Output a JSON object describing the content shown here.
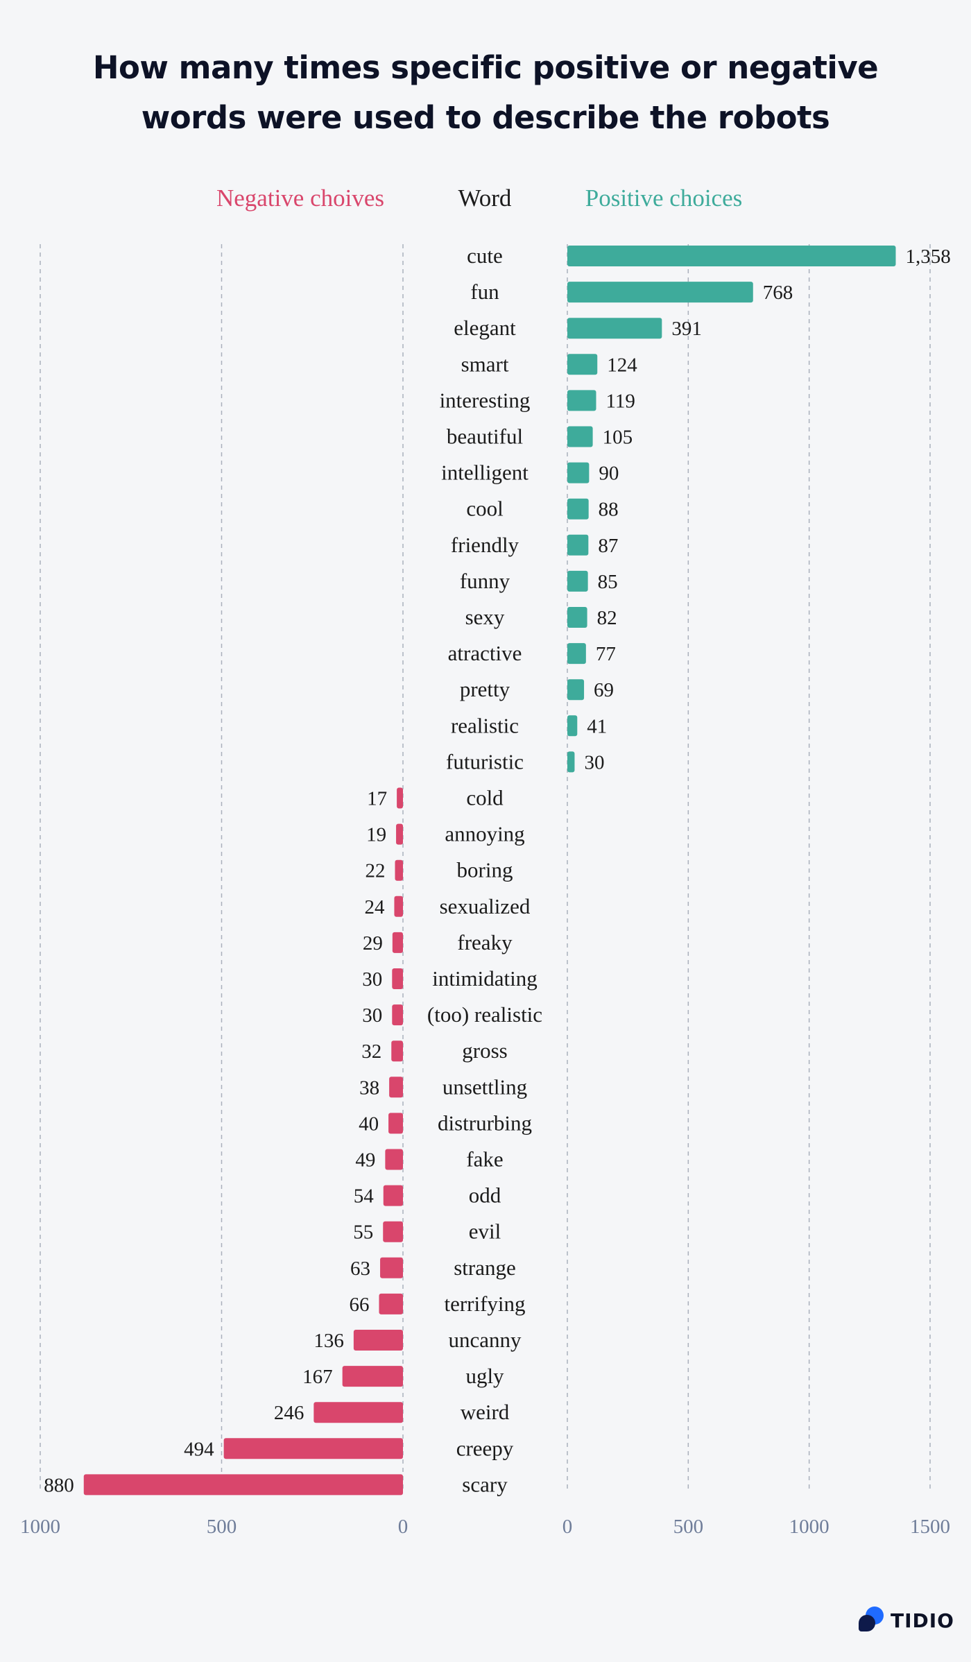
{
  "title_lines": [
    "How many times specific positive or negative",
    "words were used to describe the robots"
  ],
  "headers": {
    "negative": "Negative choives",
    "word": "Word",
    "positive": "Positive choices"
  },
  "colors": {
    "negative": "#d9466c",
    "positive": "#3eab9b",
    "text": "#1b1b1b",
    "axis_tick": "#6f7d99",
    "grid": "#aab0bc",
    "background": "#f5f6f8"
  },
  "logo_text": "TIDIO",
  "chart_data": {
    "type": "bar",
    "orientation": "horizontal",
    "grid": true,
    "panels": [
      {
        "name": "Negative choives",
        "direction": "leftward",
        "xlim": [
          0,
          1000
        ],
        "ticks": [
          "1000",
          "500",
          "0"
        ]
      },
      {
        "name": "Positive choices",
        "direction": "rightward",
        "xlim": [
          0,
          1500
        ],
        "ticks": [
          "0",
          "500",
          "1000",
          "1500"
        ]
      }
    ],
    "rows": [
      {
        "word": "cute",
        "side": "positive",
        "value": 1358,
        "label": "1,358"
      },
      {
        "word": "fun",
        "side": "positive",
        "value": 768,
        "label": "768"
      },
      {
        "word": "elegant",
        "side": "positive",
        "value": 391,
        "label": "391"
      },
      {
        "word": "smart",
        "side": "positive",
        "value": 124,
        "label": "124"
      },
      {
        "word": "interesting",
        "side": "positive",
        "value": 119,
        "label": "119"
      },
      {
        "word": "beautiful",
        "side": "positive",
        "value": 105,
        "label": "105"
      },
      {
        "word": "intelligent",
        "side": "positive",
        "value": 90,
        "label": "90"
      },
      {
        "word": "cool",
        "side": "positive",
        "value": 88,
        "label": "88"
      },
      {
        "word": "friendly",
        "side": "positive",
        "value": 87,
        "label": "87"
      },
      {
        "word": "funny",
        "side": "positive",
        "value": 85,
        "label": "85"
      },
      {
        "word": "sexy",
        "side": "positive",
        "value": 82,
        "label": "82"
      },
      {
        "word": "atractive",
        "side": "positive",
        "value": 77,
        "label": "77"
      },
      {
        "word": "pretty",
        "side": "positive",
        "value": 69,
        "label": "69"
      },
      {
        "word": "realistic",
        "side": "positive",
        "value": 41,
        "label": "41"
      },
      {
        "word": "futuristic",
        "side": "positive",
        "value": 30,
        "label": "30"
      },
      {
        "word": "cold",
        "side": "negative",
        "value": 17,
        "label": "17"
      },
      {
        "word": "annoying",
        "side": "negative",
        "value": 19,
        "label": "19"
      },
      {
        "word": "boring",
        "side": "negative",
        "value": 22,
        "label": "22"
      },
      {
        "word": "sexualized",
        "side": "negative",
        "value": 24,
        "label": "24"
      },
      {
        "word": "freaky",
        "side": "negative",
        "value": 29,
        "label": "29"
      },
      {
        "word": "intimidating",
        "side": "negative",
        "value": 30,
        "label": "30"
      },
      {
        "word": "(too) realistic",
        "side": "negative",
        "value": 30,
        "label": "30"
      },
      {
        "word": "gross",
        "side": "negative",
        "value": 32,
        "label": "32"
      },
      {
        "word": "unsettling",
        "side": "negative",
        "value": 38,
        "label": "38"
      },
      {
        "word": "distrurbing",
        "side": "negative",
        "value": 40,
        "label": "40"
      },
      {
        "word": "fake",
        "side": "negative",
        "value": 49,
        "label": "49"
      },
      {
        "word": "odd",
        "side": "negative",
        "value": 54,
        "label": "54"
      },
      {
        "word": "evil",
        "side": "negative",
        "value": 55,
        "label": "55"
      },
      {
        "word": "strange",
        "side": "negative",
        "value": 63,
        "label": "63"
      },
      {
        "word": "terrifying",
        "side": "negative",
        "value": 66,
        "label": "66"
      },
      {
        "word": "uncanny",
        "side": "negative",
        "value": 136,
        "label": "136"
      },
      {
        "word": "ugly",
        "side": "negative",
        "value": 167,
        "label": "167"
      },
      {
        "word": "weird",
        "side": "negative",
        "value": 246,
        "label": "246"
      },
      {
        "word": "creepy",
        "side": "negative",
        "value": 494,
        "label": "494"
      },
      {
        "word": "scary",
        "side": "negative",
        "value": 880,
        "label": "880"
      }
    ]
  }
}
